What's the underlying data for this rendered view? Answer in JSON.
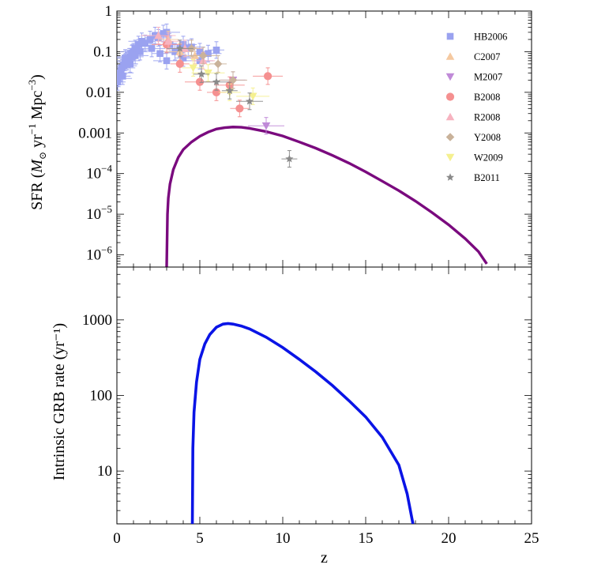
{
  "chart_data": [
    {
      "type": "line+scatter",
      "ylabel_parts": [
        "SFR (",
        "M",
        "⊙",
        " yr",
        "−1",
        " Mpc",
        "−3",
        ")"
      ],
      "ylog": true,
      "xlim": [
        0,
        25
      ],
      "ylim": [
        5e-07,
        1
      ],
      "y_ticks": [
        {
          "value": 1,
          "label": "1"
        },
        {
          "value": 0.1,
          "label": "0.1"
        },
        {
          "value": 0.01,
          "label": "0.01"
        },
        {
          "value": 0.001,
          "label": "0.001"
        },
        {
          "value": 0.0001,
          "base": "10",
          "exp": "−4"
        },
        {
          "value": 1e-05,
          "base": "10",
          "exp": "−5"
        },
        {
          "value": 1e-06,
          "base": "10",
          "exp": "−6"
        }
      ],
      "curve": {
        "color": "#7a0a7e",
        "points": [
          [
            3.0,
            5e-07
          ],
          [
            3.05,
            1e-05
          ],
          [
            3.1,
            2.5e-05
          ],
          [
            3.2,
            5.5e-05
          ],
          [
            3.4,
            0.000125
          ],
          [
            3.7,
            0.00025
          ],
          [
            4.0,
            0.00039
          ],
          [
            4.5,
            0.0006
          ],
          [
            5.0,
            0.00083
          ],
          [
            5.5,
            0.00105
          ],
          [
            6.0,
            0.00125
          ],
          [
            6.5,
            0.00135
          ],
          [
            7.0,
            0.0014
          ],
          [
            7.5,
            0.00138
          ],
          [
            8.0,
            0.0013
          ],
          [
            9.0,
            0.00108
          ],
          [
            10.0,
            0.00084
          ],
          [
            11.0,
            0.0006
          ],
          [
            12.0,
            0.00042
          ],
          [
            13.0,
            0.00028
          ],
          [
            14.0,
            0.00018
          ],
          [
            15.0,
            0.00011
          ],
          [
            16.0,
            6.5e-05
          ],
          [
            17.0,
            3.8e-05
          ],
          [
            18.0,
            2.1e-05
          ],
          [
            19.0,
            1.1e-05
          ],
          [
            20.0,
            5.5e-06
          ],
          [
            21.0,
            2.5e-06
          ],
          [
            21.8,
            1.2e-06
          ],
          [
            22.3,
            6e-07
          ]
        ]
      },
      "series": [
        {
          "name": "HB2006",
          "marker": "square",
          "color": "#9aa2f0",
          "points": [
            [
              0.05,
              0.018
            ],
            [
              0.1,
              0.022
            ],
            [
              0.15,
              0.028
            ],
            [
              0.2,
              0.03
            ],
            [
              0.25,
              0.035
            ],
            [
              0.3,
              0.04
            ],
            [
              0.35,
              0.025
            ],
            [
              0.4,
              0.045
            ],
            [
              0.5,
              0.055
            ],
            [
              0.6,
              0.06
            ],
            [
              0.7,
              0.065
            ],
            [
              0.8,
              0.075
            ],
            [
              0.9,
              0.09
            ],
            [
              1.0,
              0.1
            ],
            [
              1.1,
              0.12
            ],
            [
              1.2,
              0.11
            ],
            [
              1.3,
              0.15
            ],
            [
              1.5,
              0.18
            ],
            [
              1.7,
              0.16
            ],
            [
              2.0,
              0.2
            ],
            [
              2.3,
              0.25
            ],
            [
              2.5,
              0.22
            ],
            [
              2.8,
              0.28
            ],
            [
              3.0,
              0.3
            ],
            [
              3.2,
              0.15
            ],
            [
              3.5,
              0.1
            ],
            [
              3.8,
              0.12
            ],
            [
              4.0,
              0.15
            ],
            [
              4.3,
              0.12
            ],
            [
              4.5,
              0.13
            ],
            [
              5.0,
              0.1
            ],
            [
              5.5,
              0.09
            ],
            [
              6.0,
              0.11
            ],
            [
              0.5,
              0.07
            ],
            [
              0.8,
              0.05
            ],
            [
              1.1,
              0.08
            ],
            [
              1.4,
              0.1
            ],
            [
              2.1,
              0.12
            ],
            [
              2.6,
              0.09
            ],
            [
              3.0,
              0.06
            ],
            [
              4.0,
              0.07
            ],
            [
              5.0,
              0.06
            ]
          ]
        },
        {
          "name": "C2007",
          "marker": "triangle-up",
          "color": "#f5c9a0",
          "points": [
            [
              3.1,
              0.2
            ],
            [
              3.8,
              0.1
            ],
            [
              4.7,
              0.08
            ]
          ]
        },
        {
          "name": "M2007",
          "marker": "triangle-down",
          "color": "#c08ad8",
          "points": [
            [
              7.0,
              0.02
            ],
            [
              9.0,
              0.0015
            ]
          ]
        },
        {
          "name": "B2008",
          "marker": "circle",
          "color": "#f59090",
          "points": [
            [
              3.0,
              0.15
            ],
            [
              3.8,
              0.05
            ],
            [
              5.0,
              0.018
            ],
            [
              6.0,
              0.01
            ],
            [
              6.8,
              0.015
            ],
            [
              7.4,
              0.004
            ],
            [
              9.1,
              0.025
            ]
          ]
        },
        {
          "name": "R2008",
          "marker": "triangle-up",
          "color": "#f7b3c0",
          "points": [
            [
              2.5,
              0.25
            ],
            [
              3.1,
              0.18
            ],
            [
              4.1,
              0.12
            ],
            [
              5.2,
              0.06
            ]
          ]
        },
        {
          "name": "Y2008",
          "marker": "diamond",
          "color": "#c9b29a",
          "points": [
            [
              4.5,
              0.12
            ],
            [
              5.2,
              0.08
            ],
            [
              6.1,
              0.05
            ],
            [
              7.0,
              0.02
            ]
          ]
        },
        {
          "name": "W2009",
          "marker": "inverted-triangle",
          "color": "#f5f090",
          "points": [
            [
              4.6,
              0.04
            ],
            [
              5.5,
              0.03
            ],
            [
              6.8,
              0.01
            ],
            [
              8.2,
              0.008
            ]
          ]
        },
        {
          "name": "B2011",
          "marker": "star",
          "color": "#8a8a8a",
          "points": [
            [
              3.8,
              0.12
            ],
            [
              5.1,
              0.028
            ],
            [
              6.0,
              0.018
            ],
            [
              6.8,
              0.011
            ],
            [
              8.0,
              0.006
            ],
            [
              10.4,
              0.00023
            ]
          ]
        }
      ],
      "legend_position": "top-right"
    },
    {
      "type": "line",
      "ylabel": "Intrinsic GRB rate (yr⁻¹)",
      "xlabel": "z",
      "ylog": true,
      "xlim": [
        0,
        25
      ],
      "ylim": [
        2,
        5000
      ],
      "y_ticks": [
        {
          "value": 1000,
          "label": "1000"
        },
        {
          "value": 100,
          "label": "100"
        },
        {
          "value": 10,
          "label": "10"
        }
      ],
      "x_ticks": [
        {
          "value": 0,
          "label": "0"
        },
        {
          "value": 5,
          "label": "5"
        },
        {
          "value": 10,
          "label": "10"
        },
        {
          "value": 15,
          "label": "15"
        },
        {
          "value": 20,
          "label": "20"
        },
        {
          "value": 25,
          "label": "25"
        }
      ],
      "curve": {
        "color": "#0a14e6",
        "points": [
          [
            4.55,
            2
          ],
          [
            4.58,
            20
          ],
          [
            4.65,
            60
          ],
          [
            4.8,
            150
          ],
          [
            5.0,
            300
          ],
          [
            5.3,
            480
          ],
          [
            5.6,
            640
          ],
          [
            6.0,
            800
          ],
          [
            6.4,
            880
          ],
          [
            6.7,
            895
          ],
          [
            7.0,
            880
          ],
          [
            7.5,
            830
          ],
          [
            8.0,
            760
          ],
          [
            9.0,
            590
          ],
          [
            10.0,
            430
          ],
          [
            11.0,
            300
          ],
          [
            12.0,
            205
          ],
          [
            13.0,
            135
          ],
          [
            14.0,
            85
          ],
          [
            15.0,
            52
          ],
          [
            16.0,
            28
          ],
          [
            17.0,
            12
          ],
          [
            17.5,
            5
          ],
          [
            17.85,
            2
          ]
        ]
      }
    }
  ]
}
